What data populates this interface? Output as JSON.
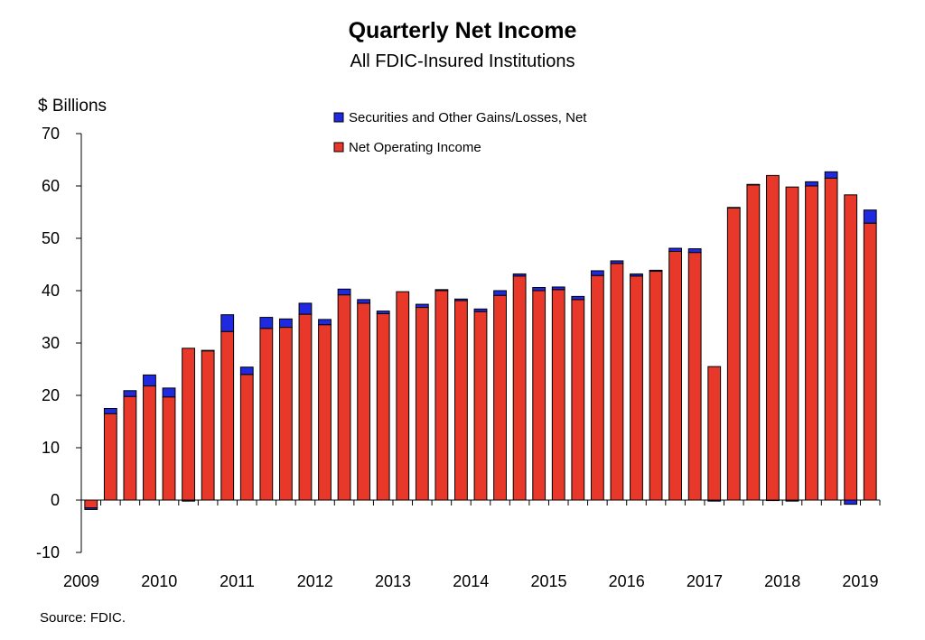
{
  "title": "Quarterly Net Income",
  "subtitle": "All FDIC-Insured Institutions",
  "ylabel": "$ Billions",
  "source": "Source:  FDIC.",
  "colors": {
    "net_operating": "#e8382a",
    "securities": "#1f2ae0",
    "outline": "#000000"
  },
  "chart_data": {
    "type": "bar",
    "stacked": true,
    "title": "Quarterly Net Income",
    "subtitle": "All FDIC-Insured Institutions",
    "ylabel": "$ Billions",
    "ylim": [
      -10,
      70
    ],
    "yticks": [
      -10,
      0,
      10,
      20,
      30,
      40,
      50,
      60,
      70
    ],
    "year_labels": [
      "2009",
      "2010",
      "2011",
      "2012",
      "2013",
      "2014",
      "2015",
      "2016",
      "2017",
      "2018",
      "2019"
    ],
    "legend": [
      "Securities and Other Gains/Losses, Net",
      "Net Operating Income"
    ],
    "legend_position": "top-center",
    "grid": false,
    "categories": [
      "2009 Q1",
      "2009 Q2",
      "2009 Q3",
      "2009 Q4",
      "2010 Q1",
      "2010 Q2",
      "2010 Q3",
      "2010 Q4",
      "2011 Q1",
      "2011 Q2",
      "2011 Q3",
      "2011 Q4",
      "2012 Q1",
      "2012 Q2",
      "2012 Q3",
      "2012 Q4",
      "2013 Q1",
      "2013 Q2",
      "2013 Q3",
      "2013 Q4",
      "2014 Q1",
      "2014 Q2",
      "2014 Q3",
      "2014 Q4",
      "2015 Q1",
      "2015 Q2",
      "2015 Q3",
      "2015 Q4",
      "2016 Q1",
      "2016 Q2",
      "2016 Q3",
      "2016 Q4",
      "2017 Q1",
      "2017 Q2",
      "2017 Q3",
      "2017 Q4",
      "2018 Q1",
      "2018 Q2",
      "2018 Q3",
      "2018 Q4",
      "2019 Q1"
    ],
    "series": [
      {
        "name": "Net Operating Income",
        "values": [
          -1.5,
          16.5,
          19.8,
          21.8,
          19.7,
          29.0,
          28.5,
          32.2,
          24.0,
          32.8,
          33.0,
          35.5,
          33.5,
          39.2,
          37.6,
          35.6,
          39.8,
          36.8,
          40.0,
          38.1,
          36.0,
          39.1,
          42.8,
          40.0,
          40.2,
          38.3,
          42.9,
          45.2,
          42.8,
          43.7,
          47.5,
          47.3,
          25.5,
          55.8,
          60.2,
          62.0,
          59.8,
          60.0,
          61.5,
          58.3,
          52.9
        ]
      },
      {
        "name": "Securities and Other Gains/Losses, Net",
        "values": [
          -0.3,
          1.0,
          1.1,
          2.1,
          1.7,
          -0.2,
          0.1,
          3.2,
          1.4,
          2.1,
          1.6,
          2.1,
          1.0,
          1.1,
          0.7,
          0.5,
          0.0,
          0.6,
          0.2,
          0.3,
          0.5,
          0.9,
          0.4,
          0.6,
          0.5,
          0.6,
          0.9,
          0.5,
          0.4,
          0.2,
          0.6,
          0.7,
          -0.2,
          0.1,
          0.1,
          -0.1,
          -0.2,
          0.8,
          1.2,
          -0.8,
          2.5
        ]
      }
    ]
  }
}
